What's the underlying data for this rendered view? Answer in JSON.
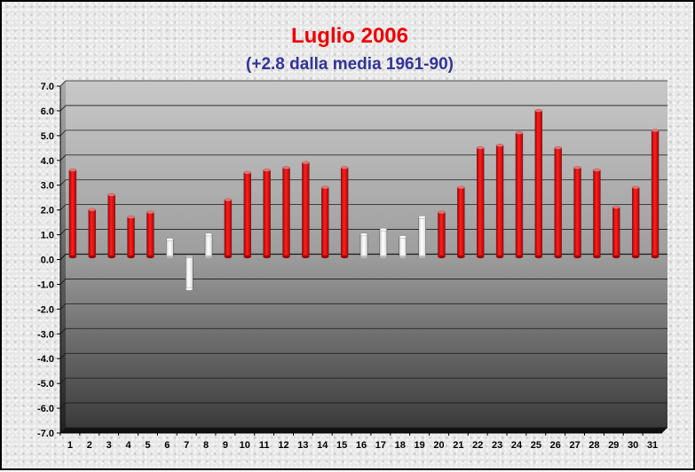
{
  "chart_data": {
    "type": "bar",
    "title": "Luglio 2006",
    "subtitle": "(+2.8 dalla media 1961-90)",
    "xlabel": "",
    "ylabel": "",
    "ylim": [
      -7.0,
      7.0
    ],
    "y_ticks": [
      "7.0",
      "6.0",
      "5.0",
      "4.0",
      "3.0",
      "2.0",
      "1.0",
      "0.0",
      "-1.0",
      "-2.0",
      "-3.0",
      "-4.0",
      "-5.0",
      "-6.0",
      "-7.0"
    ],
    "categories": [
      "1",
      "2",
      "3",
      "4",
      "5",
      "6",
      "7",
      "8",
      "9",
      "10",
      "11",
      "12",
      "13",
      "14",
      "15",
      "16",
      "17",
      "18",
      "19",
      "20",
      "21",
      "22",
      "23",
      "24",
      "25",
      "26",
      "27",
      "28",
      "29",
      "30",
      "31"
    ],
    "values": [
      3.5,
      1.9,
      2.5,
      1.6,
      1.8,
      0.7,
      -1.3,
      0.9,
      2.3,
      3.4,
      3.5,
      3.6,
      3.8,
      2.8,
      3.6,
      0.9,
      1.1,
      0.8,
      1.6,
      1.8,
      2.8,
      4.4,
      4.5,
      5.0,
      5.9,
      4.4,
      3.6,
      3.5,
      2.0,
      2.8,
      5.1
    ],
    "grid": true,
    "legend": "none",
    "colors": {
      "warm_bar": "#ee1111",
      "cool_bar": "#ffffff",
      "title": "#ee0000",
      "subtitle": "#333399"
    },
    "bar_colors": [
      "red",
      "red",
      "red",
      "red",
      "red",
      "white",
      "white",
      "white",
      "red",
      "red",
      "red",
      "red",
      "red",
      "red",
      "red",
      "white",
      "white",
      "white",
      "white",
      "red",
      "red",
      "red",
      "red",
      "red",
      "red",
      "red",
      "red",
      "red",
      "red",
      "red",
      "red"
    ]
  }
}
